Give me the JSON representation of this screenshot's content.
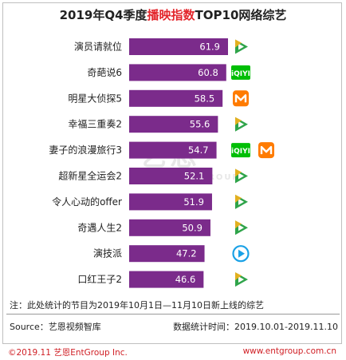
{
  "title": {
    "prefix": "2019年Q4季度",
    "highlight": "播映指数",
    "suffix": "TOP10网络综艺"
  },
  "chart_data": {
    "type": "bar",
    "orientation": "horizontal",
    "categories": [
      "演员请就位",
      "奇葩说6",
      "明星大侦探5",
      "幸福三重奏2",
      "妻子的浪漫旅行3",
      "超新星全运会2",
      "令人心动的offer",
      "奇遇人生2",
      "演技派",
      "口红王子2"
    ],
    "values": [
      61.9,
      60.8,
      58.5,
      55.6,
      54.7,
      52.1,
      51.9,
      50.9,
      47.2,
      46.6
    ],
    "platforms": [
      [
        "tencent"
      ],
      [
        "iqiyi"
      ],
      [
        "mango"
      ],
      [
        "tencent"
      ],
      [
        "iqiyi",
        "mango"
      ],
      [
        "tencent"
      ],
      [
        "tencent"
      ],
      [
        "tencent"
      ],
      [
        "youku"
      ],
      [
        "tencent"
      ]
    ],
    "bar_color": "#7b2b8b",
    "xlim": [
      0,
      65
    ]
  },
  "platform_icons": {
    "tencent": {
      "name": "tencent-video-icon",
      "color": "#2fa44a"
    },
    "iqiyi": {
      "name": "iqiyi-icon",
      "label": "iQIYI",
      "color": "#00be06"
    },
    "mango": {
      "name": "mango-tv-icon",
      "color": "#ff7b00"
    },
    "youku": {
      "name": "youku-icon",
      "color": "#1aa1e6"
    }
  },
  "note": "注：此处统计的节目为2019年10月1日—11月10日新上线的综艺",
  "source": "Source：艺恩视频智库",
  "period": "数据统计时间：2019.10.01-2019.11.10",
  "copyright": "©2019.11 艺恩EntGroup Inc.",
  "website": "www.entgroup.com.cn",
  "watermark": {
    "main": "艺恩",
    "sub": "ENTGROUP"
  }
}
